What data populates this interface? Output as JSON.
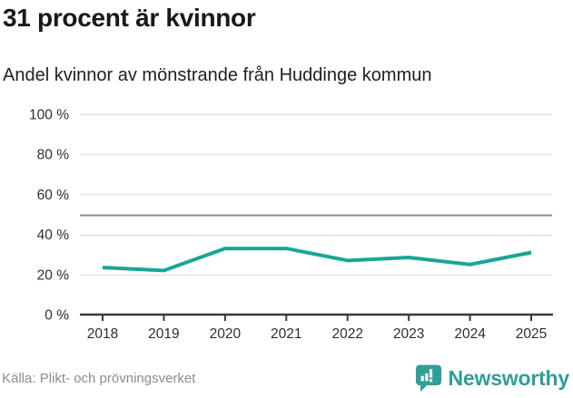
{
  "header": {
    "title": "31 procent är kvinnor",
    "subtitle": "Andel kvinnor av mönstrande från Huddinge kommun"
  },
  "chart_data": {
    "type": "line",
    "title": "31 procent är kvinnor",
    "subtitle": "Andel kvinnor av mönstrande från Huddinge kommun",
    "x": [
      2018,
      2019,
      2020,
      2021,
      2022,
      2023,
      2024,
      2025
    ],
    "series": [
      {
        "name": "Andel kvinnor av mönstrande",
        "values": [
          23.5,
          22,
          33,
          33,
          27,
          28.5,
          25,
          31
        ],
        "color": "#17a796"
      }
    ],
    "ylim": [
      0,
      100
    ],
    "yticks": [
      0,
      20,
      40,
      60,
      80,
      100
    ],
    "ytick_suffix": " %",
    "reference_line": {
      "value": 50,
      "color": "#8c8c8c"
    },
    "grid": true,
    "grid_color": "#e4e4e4",
    "axis_color": "#3a3a3a",
    "tick_label_color": "#2e2e2e",
    "legend": "none",
    "xlabel": "",
    "ylabel": ""
  },
  "footer": {
    "source": "Källa: Plikt- och prövningsverket",
    "brand": "Newsworthy",
    "brand_color": "#2f9e99",
    "logo_icon": "newsworthy-speech-bubble-bar-chart-icon"
  },
  "colors": {
    "accent_teal": "#17a796",
    "logo_teal": "#2f9e99",
    "title_text": "#191919",
    "source_text": "#8c8c8c"
  }
}
